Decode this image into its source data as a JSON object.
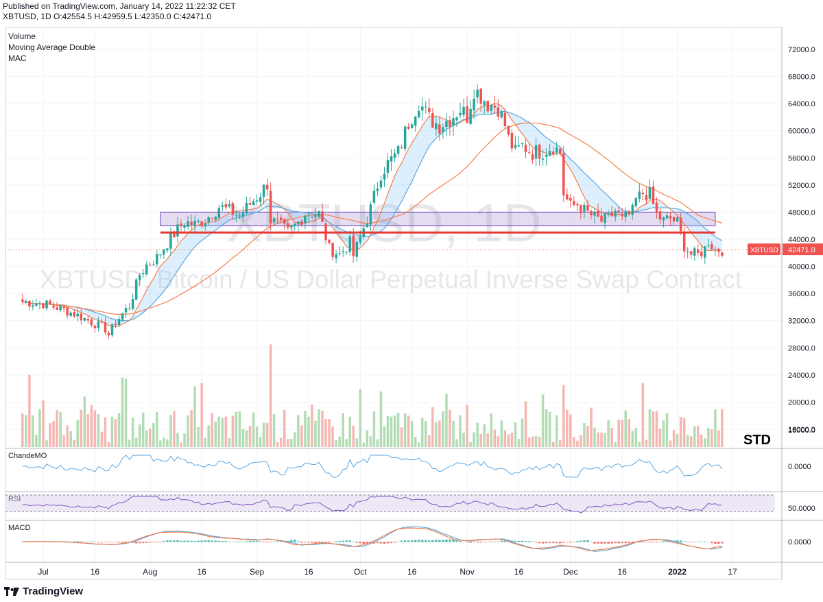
{
  "header": {
    "published": "Published on TradingView.com, January 14, 2022 11:22:32 CET",
    "ohlc": "XBTUSD, 1D O:42554.5 H:42959.5 L:42350.0 C:42471.0"
  },
  "footer": {
    "brand": "TradingView"
  },
  "colors": {
    "up": "#26a69a",
    "down": "#ef5350",
    "ma_fast": "#f57f4a",
    "ma_slow": "#5aa6e0",
    "resistance": "#e53935",
    "zone": "#b39ddb",
    "rsi": "#7e57c2"
  },
  "chart_data": {
    "type": "candlestick",
    "symbol": "XBTUSD",
    "interval": "1D",
    "watermark_symbol": "XBTUSD, 1D",
    "watermark_description": "XBTUSD: Bitcoin / US Dollar Perpetual Inverse Swap Contract",
    "legend": [
      "Volume",
      "Moving Average Double",
      "MAC"
    ],
    "last_price_label": "42471.0",
    "annotation": "STD",
    "y_range": [
      12000,
      76000
    ],
    "y_ticks": [
      "72000.0",
      "68000.0",
      "64000.0",
      "60000.0",
      "56000.0",
      "52000.0",
      "48000.0",
      "44000.0",
      "40000.0",
      "36000.0",
      "32000.0",
      "28000.0",
      "24000.0",
      "20000.0",
      "16000.0"
    ],
    "x_ticks": [
      {
        "label": "Jul",
        "day": 0
      },
      {
        "label": "16",
        "day": 15
      },
      {
        "label": "Aug",
        "day": 31
      },
      {
        "label": "16",
        "day": 46
      },
      {
        "label": "Sep",
        "day": 62
      },
      {
        "label": "16",
        "day": 77
      },
      {
        "label": "Oct",
        "day": 92
      },
      {
        "label": "16",
        "day": 107
      },
      {
        "label": "Nov",
        "day": 123
      },
      {
        "label": "16",
        "day": 138
      },
      {
        "label": "Dec",
        "day": 153
      },
      {
        "label": "16",
        "day": 168
      },
      {
        "label": "2022",
        "day": 184
      },
      {
        "label": "17",
        "day": 200
      }
    ],
    "start_day": -6,
    "end_day": 197,
    "close_keypoints": [
      [
        -6,
        34800
      ],
      [
        0,
        34500
      ],
      [
        5,
        33800
      ],
      [
        10,
        32800
      ],
      [
        14,
        31800
      ],
      [
        18,
        30800
      ],
      [
        19,
        29900
      ],
      [
        21,
        31800
      ],
      [
        25,
        34200
      ],
      [
        28,
        38800
      ],
      [
        30,
        40200
      ],
      [
        33,
        41300
      ],
      [
        35,
        42800
      ],
      [
        38,
        44800
      ],
      [
        41,
        46600
      ],
      [
        44,
        46200
      ],
      [
        47,
        46900
      ],
      [
        51,
        48800
      ],
      [
        54,
        48200
      ],
      [
        57,
        47500
      ],
      [
        60,
        49200
      ],
      [
        63,
        50800
      ],
      [
        65,
        52200
      ],
      [
        66,
        46800
      ],
      [
        68,
        46300
      ],
      [
        71,
        45000
      ],
      [
        74,
        46500
      ],
      [
        76,
        47800
      ],
      [
        80,
        47800
      ],
      [
        83,
        42600
      ],
      [
        86,
        41800
      ],
      [
        89,
        43500
      ],
      [
        90,
        41600
      ],
      [
        92,
        44200
      ],
      [
        95,
        48500
      ],
      [
        98,
        53800
      ],
      [
        100,
        55200
      ],
      [
        103,
        56800
      ],
      [
        106,
        61200
      ],
      [
        109,
        64300
      ],
      [
        112,
        61800
      ],
      [
        115,
        60800
      ],
      [
        118,
        61800
      ],
      [
        121,
        63200
      ],
      [
        123,
        62200
      ],
      [
        124,
        64200
      ],
      [
        125,
        66200
      ],
      [
        127,
        65200
      ],
      [
        129,
        64000
      ],
      [
        132,
        63500
      ],
      [
        134,
        60800
      ],
      [
        135,
        58800
      ],
      [
        137,
        56800
      ],
      [
        139,
        57800
      ],
      [
        142,
        56800
      ],
      [
        145,
        57000
      ],
      [
        148,
        57800
      ],
      [
        150,
        56800
      ],
      [
        151,
        50800
      ],
      [
        153,
        48800
      ],
      [
        155,
        49200
      ],
      [
        157,
        48200
      ],
      [
        160,
        47200
      ],
      [
        162,
        46700
      ],
      [
        164,
        47000
      ],
      [
        166,
        48200
      ],
      [
        168,
        46800
      ],
      [
        171,
        48000
      ],
      [
        172,
        49800
      ],
      [
        174,
        50800
      ],
      [
        176,
        50600
      ],
      [
        178,
        47600
      ],
      [
        180,
        46700
      ],
      [
        182,
        47100
      ],
      [
        184,
        46400
      ],
      [
        186,
        43100
      ],
      [
        188,
        41800
      ],
      [
        190,
        41700
      ],
      [
        192,
        42600
      ],
      [
        193,
        43800
      ],
      [
        195,
        42500
      ]
    ],
    "volume_ticks": [
      "16000.0"
    ],
    "indicators": [
      {
        "name": "ChandeMO",
        "value_label": "0.0000"
      },
      {
        "name": "RSI",
        "value_label": "50.0000"
      },
      {
        "name": "MACD",
        "value_label": "0.0000"
      }
    ],
    "resistance_level": 45000,
    "zone": [
      46000,
      48000
    ]
  }
}
